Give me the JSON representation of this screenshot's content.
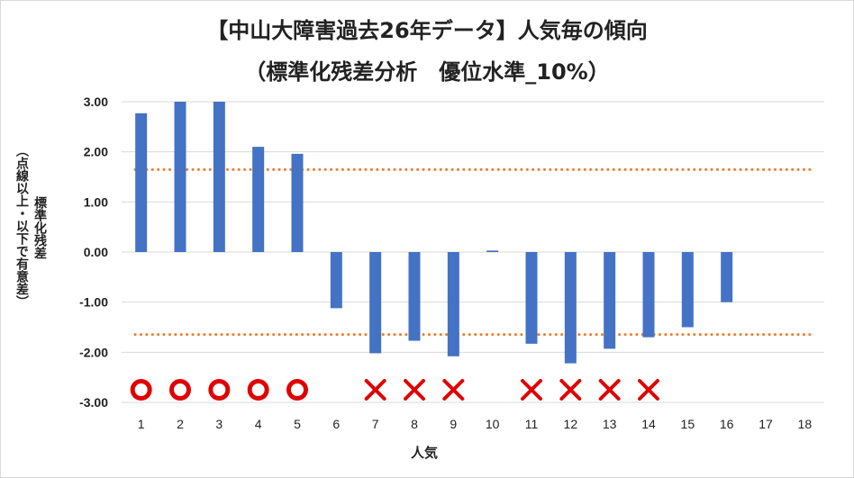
{
  "chart_data": {
    "type": "bar",
    "title": "【中山大障害過去26年データ】人気毎の傾向",
    "subtitle": "（標準化残差分析　優位水準_10%）",
    "xlabel": "人気",
    "ylabel_line1": "標準化残差",
    "ylabel_line2": "（点線以上・以下で有意差）",
    "categories": [
      "1",
      "2",
      "3",
      "4",
      "5",
      "6",
      "7",
      "8",
      "9",
      "10",
      "11",
      "12",
      "13",
      "14",
      "15",
      "16",
      "17",
      "18"
    ],
    "values": [
      2.77,
      3.0,
      3.0,
      2.1,
      1.96,
      -1.12,
      -2.02,
      -1.77,
      -2.08,
      0.03,
      -1.83,
      -2.22,
      -1.93,
      -1.7,
      -1.5,
      -1.0,
      null,
      null
    ],
    "ylim": [
      -3.0,
      3.0
    ],
    "yticks": [
      "3.00",
      "2.00",
      "1.00",
      "0.00",
      "-1.00",
      "-2.00",
      "-3.00"
    ],
    "threshold_upper": 1.645,
    "threshold_lower": -1.645,
    "markers": [
      "circle",
      "circle",
      "circle",
      "circle",
      "circle",
      null,
      "cross",
      "cross",
      "cross",
      null,
      "cross",
      "cross",
      "cross",
      "cross",
      null,
      null,
      null,
      null
    ],
    "colors": {
      "bar": "#4472c4",
      "threshold": "#ed7d31",
      "marker": "#e00000",
      "grid": "#d9d9d9"
    }
  }
}
